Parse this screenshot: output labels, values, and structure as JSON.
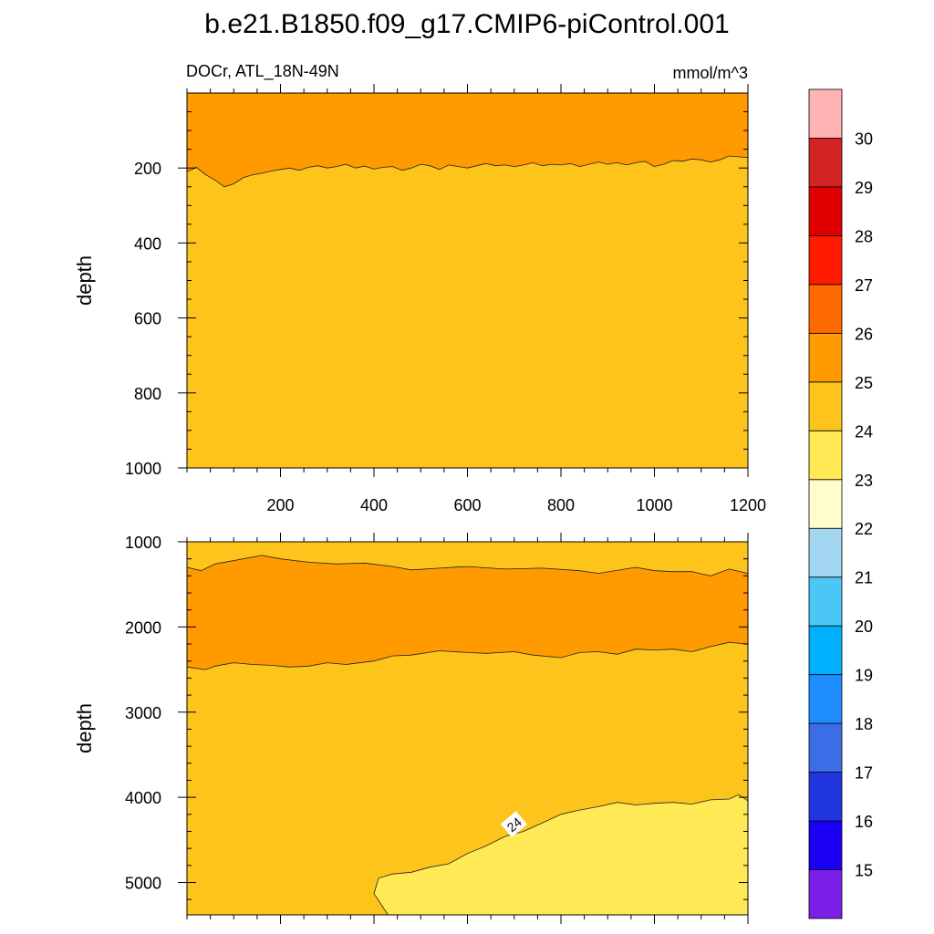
{
  "chart_data": {
    "type": "contour",
    "title": "b.e21.B1850.f09_g17.CMIP6-piControl.001",
    "left_label": "DOCr, ATL_18N-49N",
    "right_label": "mmol/m^3",
    "colorbar": {
      "levels": [
        15,
        16,
        17,
        18,
        19,
        20,
        21,
        22,
        23,
        24,
        25,
        26,
        27,
        28,
        29,
        30
      ],
      "level_labels": [
        "15",
        "16",
        "17",
        "18",
        "19",
        "20",
        "21",
        "22",
        "23",
        "24",
        "25",
        "26",
        "27",
        "28",
        "29",
        "30"
      ],
      "colors": [
        "#7a1fe8",
        "#1c00f5",
        "#2236e0",
        "#3b6ee6",
        "#1f8cff",
        "#00b0ff",
        "#4cc6f5",
        "#a2d5f0",
        "#ffffcc",
        "#ffe955",
        "#fdc41c",
        "#ff9a00",
        "#ff6a00",
        "#ff1a00",
        "#e00000",
        "#d22424",
        "#ffb3b3"
      ]
    },
    "panels": [
      {
        "name": "upper",
        "xlim": [
          0,
          1200
        ],
        "ylim": [
          0,
          1000
        ],
        "y_inverted": true,
        "ylabel": "depth",
        "xticks": [
          200,
          400,
          600,
          800,
          1000,
          1200
        ],
        "xtick_labels": [
          "200",
          "400",
          "600",
          "800",
          "1000",
          "1200"
        ],
        "yticks": [
          200,
          400,
          600,
          800,
          1000
        ],
        "ytick_labels": [
          "200",
          "400",
          "600",
          "800",
          "1000"
        ],
        "regions": [
          {
            "level_range": "24-25",
            "description": "below ~200 m"
          },
          {
            "level_range": "25-26",
            "description": "surface to ~200 m"
          }
        ],
        "contour_25_depth": [
          [
            0,
            210
          ],
          [
            20,
            198
          ],
          [
            40,
            218
          ],
          [
            60,
            232
          ],
          [
            80,
            250
          ],
          [
            100,
            242
          ],
          [
            120,
            226
          ],
          [
            140,
            218
          ],
          [
            160,
            214
          ],
          [
            180,
            208
          ],
          [
            200,
            204
          ],
          [
            220,
            200
          ],
          [
            240,
            206
          ],
          [
            260,
            198
          ],
          [
            280,
            194
          ],
          [
            300,
            200
          ],
          [
            320,
            196
          ],
          [
            340,
            190
          ],
          [
            360,
            200
          ],
          [
            380,
            195
          ],
          [
            400,
            203
          ],
          [
            420,
            198
          ],
          [
            440,
            196
          ],
          [
            460,
            206
          ],
          [
            480,
            200
          ],
          [
            500,
            190
          ],
          [
            520,
            194
          ],
          [
            540,
            204
          ],
          [
            560,
            192
          ],
          [
            580,
            196
          ],
          [
            600,
            200
          ],
          [
            620,
            194
          ],
          [
            640,
            188
          ],
          [
            660,
            194
          ],
          [
            680,
            192
          ],
          [
            700,
            196
          ],
          [
            720,
            192
          ],
          [
            740,
            186
          ],
          [
            760,
            194
          ],
          [
            780,
            190
          ],
          [
            800,
            192
          ],
          [
            820,
            188
          ],
          [
            840,
            196
          ],
          [
            860,
            190
          ],
          [
            880,
            184
          ],
          [
            900,
            190
          ],
          [
            920,
            186
          ],
          [
            940,
            192
          ],
          [
            960,
            186
          ],
          [
            980,
            182
          ],
          [
            1000,
            196
          ],
          [
            1020,
            190
          ],
          [
            1040,
            180
          ],
          [
            1060,
            182
          ],
          [
            1080,
            176
          ],
          [
            1100,
            178
          ],
          [
            1120,
            184
          ],
          [
            1140,
            178
          ],
          [
            1160,
            168
          ],
          [
            1180,
            170
          ],
          [
            1200,
            172
          ]
        ]
      },
      {
        "name": "lower",
        "xlim": [
          0,
          1200
        ],
        "ylim": [
          1000,
          5380
        ],
        "y_inverted": true,
        "ylabel": "depth",
        "yticks": [
          1000,
          2000,
          3000,
          4000,
          5000
        ],
        "ytick_labels": [
          "1000",
          "2000",
          "3000",
          "4000",
          "5000"
        ],
        "regions": [
          {
            "level_range": "24-25",
            "description": "1000 to ~1300 m and ~2400 m to bottom"
          },
          {
            "level_range": "25-26",
            "description": "~1300 to ~2400 m band"
          },
          {
            "level_range": "23-24",
            "description": "deep water below ~4100 m, x > 400"
          }
        ],
        "contour_25_top": [
          [
            0,
            1300
          ],
          [
            30,
            1340
          ],
          [
            60,
            1260
          ],
          [
            120,
            1200
          ],
          [
            160,
            1160
          ],
          [
            200,
            1200
          ],
          [
            260,
            1240
          ],
          [
            320,
            1260
          ],
          [
            380,
            1250
          ],
          [
            440,
            1290
          ],
          [
            480,
            1330
          ],
          [
            540,
            1310
          ],
          [
            600,
            1290
          ],
          [
            680,
            1320
          ],
          [
            760,
            1310
          ],
          [
            840,
            1340
          ],
          [
            880,
            1370
          ],
          [
            960,
            1300
          ],
          [
            1000,
            1340
          ],
          [
            1040,
            1350
          ],
          [
            1080,
            1350
          ],
          [
            1120,
            1400
          ],
          [
            1160,
            1320
          ],
          [
            1200,
            1370
          ]
        ],
        "contour_25_bottom": [
          [
            0,
            2470
          ],
          [
            40,
            2500
          ],
          [
            60,
            2460
          ],
          [
            100,
            2420
          ],
          [
            140,
            2440
          ],
          [
            180,
            2450
          ],
          [
            220,
            2470
          ],
          [
            260,
            2460
          ],
          [
            300,
            2420
          ],
          [
            340,
            2440
          ],
          [
            400,
            2400
          ],
          [
            440,
            2340
          ],
          [
            480,
            2330
          ],
          [
            540,
            2280
          ],
          [
            600,
            2300
          ],
          [
            640,
            2310
          ],
          [
            700,
            2290
          ],
          [
            740,
            2330
          ],
          [
            800,
            2360
          ],
          [
            840,
            2300
          ],
          [
            880,
            2290
          ],
          [
            920,
            2320
          ],
          [
            960,
            2260
          ],
          [
            1000,
            2270
          ],
          [
            1040,
            2260
          ],
          [
            1080,
            2290
          ],
          [
            1120,
            2230
          ],
          [
            1160,
            2180
          ],
          [
            1200,
            2200
          ]
        ],
        "contour_24": [
          [
            430,
            5380
          ],
          [
            400,
            5130
          ],
          [
            410,
            4950
          ],
          [
            440,
            4900
          ],
          [
            480,
            4880
          ],
          [
            520,
            4820
          ],
          [
            560,
            4780
          ],
          [
            600,
            4660
          ],
          [
            640,
            4570
          ],
          [
            680,
            4460
          ],
          [
            720,
            4400
          ],
          [
            760,
            4300
          ],
          [
            800,
            4200
          ],
          [
            840,
            4150
          ],
          [
            880,
            4110
          ],
          [
            920,
            4060
          ],
          [
            960,
            4090
          ],
          [
            1000,
            4070
          ],
          [
            1040,
            4060
          ],
          [
            1080,
            4080
          ],
          [
            1120,
            4030
          ],
          [
            1160,
            4020
          ],
          [
            1180,
            3970
          ],
          [
            1200,
            4040
          ]
        ],
        "contour_label": {
          "text": "24",
          "x": 700,
          "y": 4320
        }
      }
    ]
  }
}
